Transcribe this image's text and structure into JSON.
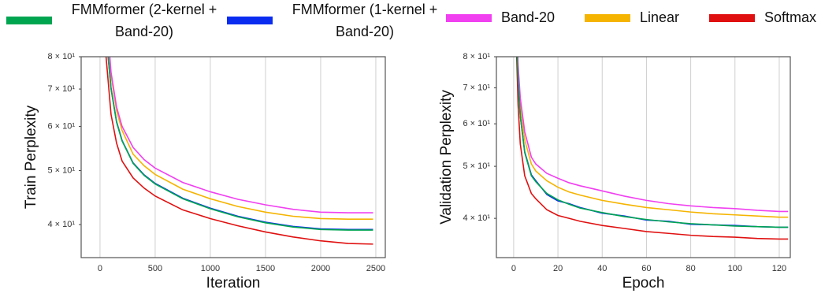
{
  "chart_data": [
    {
      "type": "line",
      "xlabel": "Iteration",
      "ylabel": "Train Perplexity",
      "log_y": true,
      "grid": "x",
      "xlim": [
        -171,
        2586
      ],
      "ylim": [
        34.9,
        80
      ],
      "xticks": [
        0,
        500,
        1000,
        1500,
        2000,
        2500
      ],
      "yticks": [
        {
          "value": 40,
          "label": "4 × 10¹"
        },
        {
          "value": 50,
          "label": "5 × 10¹"
        },
        {
          "value": 60,
          "label": "6 × 10¹"
        },
        {
          "value": 70,
          "label": "7 × 10¹"
        },
        {
          "value": 80,
          "label": "8 × 10¹"
        }
      ],
      "x": [
        50,
        100,
        150,
        200,
        300,
        400,
        500,
        750,
        1000,
        1250,
        1500,
        1750,
        2000,
        2250,
        2475
      ],
      "series": [
        {
          "name": "FMMformer (2-kernel + Band-20)",
          "color": "#00a550",
          "values": [
            90,
            70,
            61,
            56.5,
            51.5,
            49,
            47.3,
            44.5,
            42.7,
            41.3,
            40.3,
            39.6,
            39.2,
            39.1,
            39.1
          ]
        },
        {
          "name": "FMMformer (1-kernel + Band-20)",
          "color": "#0a2cf0",
          "values": [
            90,
            70.2,
            61.2,
            56.6,
            51.6,
            49.1,
            47.4,
            44.6,
            42.8,
            41.4,
            40.4,
            39.7,
            39.3,
            39.2,
            39.2
          ]
        },
        {
          "name": "Band-20",
          "color": "#f040f0",
          "values": [
            100,
            75,
            65,
            60,
            55,
            52.3,
            50.5,
            47.6,
            45.8,
            44.4,
            43.4,
            42.6,
            42.1,
            42,
            42
          ]
        },
        {
          "name": "Linear",
          "color": "#f5b400",
          "values": [
            100,
            74,
            64,
            59,
            53.5,
            51,
            49.2,
            46.3,
            44.5,
            43.1,
            42.1,
            41.4,
            41,
            40.9,
            40.9
          ]
        },
        {
          "name": "Softmax",
          "color": "#e01010",
          "values": [
            82,
            63,
            56,
            52,
            48.5,
            46.5,
            45,
            42.5,
            41,
            39.8,
            38.8,
            38,
            37.4,
            37,
            36.9
          ]
        }
      ]
    },
    {
      "type": "line",
      "xlabel": "Epoch",
      "ylabel": "Validation Perplexity",
      "log_y": true,
      "grid": "x",
      "xlim": [
        -7.8,
        125
      ],
      "ylim": [
        33.8,
        80
      ],
      "xticks": [
        0,
        20,
        40,
        60,
        80,
        100,
        120
      ],
      "yticks": [
        {
          "value": 40,
          "label": "4 × 10¹"
        },
        {
          "value": 50,
          "label": "5 × 10¹"
        },
        {
          "value": 60,
          "label": "6 × 10¹"
        },
        {
          "value": 70,
          "label": "7 × 10¹"
        },
        {
          "value": 80,
          "label": "8 × 10¹"
        }
      ],
      "x": [
        1,
        2,
        3,
        5,
        8,
        10,
        15,
        20,
        25,
        30,
        40,
        50,
        60,
        70,
        80,
        90,
        100,
        110,
        120,
        124
      ],
      "series": [
        {
          "name": "FMMformer (2-kernel + Band-20)",
          "color": "#00a550",
          "values": [
            95,
            72,
            62,
            53,
            48,
            46.8,
            44.5,
            43.3,
            42.5,
            41.8,
            41,
            40.3,
            39.8,
            39.4,
            39.1,
            38.9,
            38.7,
            38.6,
            38.5,
            38.5
          ]
        },
        {
          "name": "FMMformer (1-kernel + Band-20)",
          "color": "#0a2cf0",
          "values": [
            95,
            72,
            62,
            53.2,
            48.2,
            47,
            44.3,
            43.1,
            42.6,
            41.9,
            40.9,
            40.4,
            39.7,
            39.5,
            39,
            38.9,
            38.8,
            38.6,
            38.5,
            38.5
          ]
        },
        {
          "name": "Band-20",
          "color": "#f040f0",
          "values": [
            100,
            77,
            67,
            58,
            52,
            50.5,
            48.5,
            47.5,
            46.6,
            46,
            45,
            44,
            43.2,
            42.6,
            42.2,
            41.9,
            41.7,
            41.4,
            41.2,
            41.2
          ]
        },
        {
          "name": "Linear",
          "color": "#f5b400",
          "values": [
            100,
            75,
            65,
            56,
            50.5,
            49,
            47,
            45.7,
            44.8,
            44.2,
            43.2,
            42.5,
            41.9,
            41.5,
            41.1,
            40.8,
            40.6,
            40.4,
            40.2,
            40.2
          ]
        },
        {
          "name": "Softmax",
          "color": "#e01010",
          "values": [
            90,
            65,
            55,
            48,
            44.5,
            43.5,
            41.5,
            40.5,
            40,
            39.5,
            38.8,
            38.3,
            37.8,
            37.5,
            37.2,
            37,
            36.9,
            36.7,
            36.6,
            36.6
          ]
        }
      ]
    }
  ]
}
